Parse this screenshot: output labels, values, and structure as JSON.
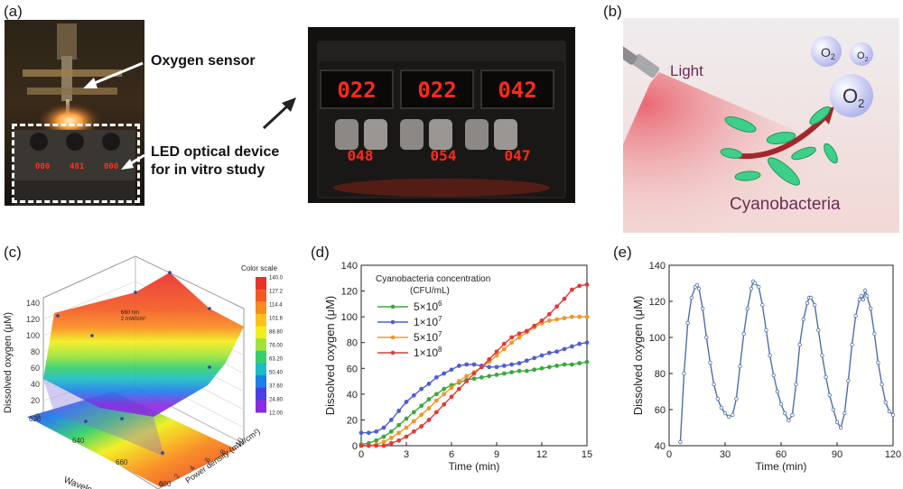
{
  "panels": {
    "a": {
      "label": "(a)",
      "annotations": {
        "oxygen_sensor": "Oxygen sensor",
        "led_line1": "LED optical device",
        "led_line2": "for in vitro study"
      },
      "device_readouts_small": [
        "000",
        "481",
        "000"
      ],
      "device_readouts_top": [
        "022",
        "022",
        "042"
      ],
      "device_readouts_bottom": [
        "048",
        "054",
        "047"
      ]
    },
    "b": {
      "label": "(b)",
      "light": "Light",
      "cyanobacteria": "Cyanobacteria",
      "o2": "O",
      "o2_sub": "2"
    },
    "c": {
      "label": "(c)"
    },
    "d": {
      "label": "(d)"
    },
    "e": {
      "label": "(e)"
    }
  },
  "chart_data": [
    {
      "panel": "c",
      "type": "surface3d",
      "zlabel": "Dissolved oxygen (μM)",
      "xlabel": "Wavelength (nm)",
      "ylabel": "Power density (mW/cm²)",
      "z_ticks": [
        "0",
        "20",
        "40",
        "60",
        "80",
        "100",
        "120",
        "140"
      ],
      "x_ticks": [
        "620",
        "640",
        "660",
        "680"
      ],
      "y_ticks": [
        "0",
        "2",
        "4",
        "6",
        "8",
        "10"
      ],
      "annotation": [
        "660 nm",
        "2 mW/cm²"
      ],
      "colorbar": {
        "title": "Color scale",
        "ticks": [
          "140.0",
          "127.2",
          "114.4",
          "101.6",
          "88.80",
          "76.00",
          "63.20",
          "50.40",
          "37.60",
          "24.80",
          "12.00"
        ],
        "colors": [
          "#e8312b",
          "#f35a23",
          "#f98b1f",
          "#fcc21b",
          "#f2ee1d",
          "#9fe33a",
          "#35d06a",
          "#1bbcc4",
          "#1f7fe8",
          "#4a3fe3",
          "#8a2be2"
        ]
      }
    },
    {
      "panel": "d",
      "type": "line",
      "xlabel": "Time (min)",
      "ylabel": "Dissolved oxygen (μM)",
      "xlim": [
        0,
        15
      ],
      "ylim": [
        0,
        140
      ],
      "x_ticks": [
        0,
        3,
        6,
        9,
        12,
        15
      ],
      "y_ticks": [
        0,
        20,
        40,
        60,
        80,
        100,
        120,
        140
      ],
      "legend_title_1": "Cyanobacteria concentration",
      "legend_title_2": "(CFU/mL)",
      "series": [
        {
          "name": "5×10",
          "exp": "6",
          "color": "#3aa83a",
          "x": [
            0,
            0.5,
            1,
            1.5,
            2,
            2.5,
            3,
            3.5,
            4,
            4.5,
            5,
            5.5,
            6,
            6.5,
            7,
            7.5,
            8,
            8.5,
            9,
            9.5,
            10,
            10.5,
            11,
            11.5,
            12,
            12.5,
            13,
            13.5,
            14,
            14.5,
            15
          ],
          "y": [
            1,
            2,
            4,
            7,
            11,
            16,
            21,
            26,
            31,
            36,
            40,
            44,
            47,
            49,
            51,
            52,
            53,
            54,
            55,
            56,
            57,
            58,
            58,
            59,
            60,
            61,
            62,
            63,
            63,
            64,
            65
          ]
        },
        {
          "name": "1×10",
          "exp": "7",
          "color": "#4f5fd0",
          "x": [
            0,
            0.5,
            1,
            1.5,
            2,
            2.5,
            3,
            3.5,
            4,
            4.5,
            5,
            5.5,
            6,
            6.5,
            7,
            7.5,
            8,
            8.5,
            9,
            9.5,
            10,
            10.5,
            11,
            11.5,
            12,
            12.5,
            13,
            13.5,
            14,
            14.5,
            15
          ],
          "y": [
            10,
            10,
            11,
            14,
            20,
            27,
            34,
            39,
            44,
            48,
            53,
            56,
            59,
            62,
            63,
            63,
            62,
            61,
            61,
            62,
            63,
            64,
            66,
            68,
            70,
            72,
            73,
            75,
            77,
            79,
            80
          ]
        },
        {
          "name": "5×10",
          "exp": "7",
          "color": "#f0962a",
          "x": [
            0,
            0.5,
            1,
            1.5,
            2,
            2.5,
            3,
            3.5,
            4,
            4.5,
            5,
            5.5,
            6,
            6.5,
            7,
            7.5,
            8,
            8.5,
            9,
            9.5,
            10,
            10.5,
            11,
            11.5,
            12,
            12.5,
            13,
            13.5,
            14,
            14.5,
            15
          ],
          "y": [
            0,
            0,
            1,
            3,
            6,
            10,
            14,
            19,
            24,
            29,
            35,
            40,
            45,
            50,
            54,
            57,
            61,
            65,
            70,
            75,
            80,
            84,
            88,
            92,
            95,
            97,
            98,
            99,
            100,
            100,
            100
          ]
        },
        {
          "name": "1×10",
          "exp": "8",
          "color": "#e03a3a",
          "x": [
            0,
            0.5,
            1,
            1.5,
            2,
            2.5,
            3,
            3.5,
            4,
            4.5,
            5,
            5.5,
            6,
            6.5,
            7,
            7.5,
            8,
            8.5,
            9,
            9.5,
            10,
            10.5,
            11,
            11.5,
            12,
            12.5,
            13,
            13.5,
            14,
            14.5,
            15
          ],
          "y": [
            0,
            0,
            0,
            0,
            2,
            4,
            7,
            11,
            15,
            20,
            26,
            32,
            38,
            44,
            50,
            56,
            61,
            67,
            73,
            79,
            84,
            87,
            89,
            93,
            97,
            102,
            108,
            114,
            121,
            124,
            125
          ]
        }
      ]
    },
    {
      "panel": "e",
      "type": "line",
      "xlabel": "Time (min)",
      "ylabel": "Dissolved oxygen (μM)",
      "xlim": [
        0,
        120
      ],
      "ylim": [
        40,
        140
      ],
      "x_ticks": [
        0,
        30,
        60,
        90,
        120
      ],
      "y_ticks": [
        40,
        60,
        80,
        100,
        120,
        140
      ],
      "series": [
        {
          "color": "#4e6fa8",
          "x": [
            6,
            8,
            10,
            12,
            14,
            15,
            16,
            18,
            20,
            22,
            24,
            26,
            28,
            30,
            32,
            34,
            36,
            38,
            40,
            42,
            44,
            45,
            46,
            48,
            50,
            52,
            54,
            56,
            58,
            60,
            62,
            64,
            66,
            68,
            70,
            72,
            74,
            75,
            76,
            78,
            80,
            82,
            84,
            86,
            88,
            90,
            92,
            94,
            96,
            98,
            100,
            102,
            103,
            104,
            105,
            106,
            108,
            110,
            112,
            114,
            116,
            118,
            120
          ],
          "y": [
            42,
            80,
            108,
            122,
            128,
            129,
            127,
            116,
            100,
            86,
            74,
            66,
            61,
            58,
            56,
            57,
            66,
            84,
            102,
            116,
            127,
            131,
            130,
            128,
            118,
            104,
            90,
            79,
            70,
            63,
            58,
            54,
            57,
            74,
            96,
            110,
            119,
            122,
            122,
            118,
            104,
            90,
            78,
            68,
            60,
            53,
            50,
            58,
            76,
            96,
            112,
            121,
            123,
            121,
            126,
            123,
            116,
            102,
            86,
            74,
            64,
            59,
            57
          ]
        }
      ]
    }
  ]
}
